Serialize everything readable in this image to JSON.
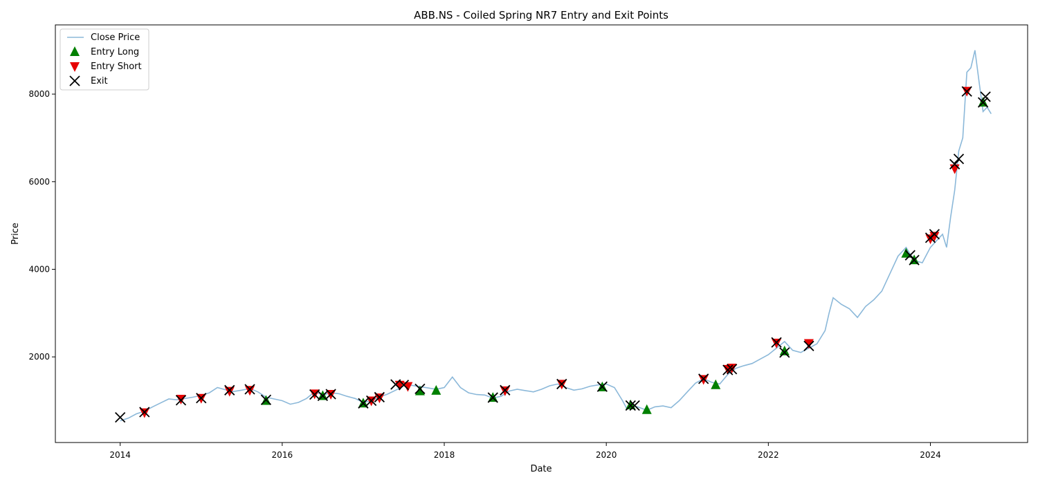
{
  "chart_data": {
    "type": "line",
    "title": "ABB.NS - Coiled Spring NR7 Entry and Exit Points",
    "xlabel": "Date",
    "ylabel": "Price",
    "xlim": [
      2013.2,
      2025.2
    ],
    "ylim": [
      45,
      9580
    ],
    "x_ticks": [
      2014,
      2016,
      2018,
      2020,
      2022,
      2024
    ],
    "x_tick_labels": [
      "2014",
      "2016",
      "2018",
      "2020",
      "2022",
      "2024"
    ],
    "y_ticks": [
      2000,
      4000,
      6000,
      8000
    ],
    "y_tick_labels": [
      "2000",
      "4000",
      "6000",
      "8000"
    ],
    "grid": false,
    "legend_position": "top-left",
    "series": [
      {
        "name": "Close Price",
        "kind": "line",
        "color": "#8bb8d9",
        "x": [
          2014.0,
          2014.1,
          2014.2,
          2014.3,
          2014.4,
          2014.5,
          2014.6,
          2014.7,
          2014.8,
          2014.9,
          2015.0,
          2015.1,
          2015.2,
          2015.3,
          2015.4,
          2015.5,
          2015.6,
          2015.7,
          2015.8,
          2015.9,
          2016.0,
          2016.1,
          2016.2,
          2016.3,
          2016.4,
          2016.5,
          2016.6,
          2016.7,
          2016.8,
          2016.9,
          2017.0,
          2017.1,
          2017.2,
          2017.3,
          2017.4,
          2017.5,
          2017.6,
          2017.7,
          2017.8,
          2017.9,
          2018.0,
          2018.1,
          2018.2,
          2018.3,
          2018.4,
          2018.5,
          2018.6,
          2018.7,
          2018.8,
          2018.9,
          2019.0,
          2019.1,
          2019.2,
          2019.3,
          2019.4,
          2019.5,
          2019.6,
          2019.7,
          2019.8,
          2019.9,
          2020.0,
          2020.1,
          2020.2,
          2020.25,
          2020.3,
          2020.4,
          2020.5,
          2020.6,
          2020.7,
          2020.8,
          2020.9,
          2021.0,
          2021.1,
          2021.2,
          2021.3,
          2021.4,
          2021.5,
          2021.6,
          2021.7,
          2021.8,
          2021.9,
          2022.0,
          2022.1,
          2022.2,
          2022.3,
          2022.4,
          2022.5,
          2022.6,
          2022.7,
          2022.75,
          2022.8,
          2022.9,
          2023.0,
          2023.1,
          2023.2,
          2023.3,
          2023.4,
          2023.5,
          2023.6,
          2023.7,
          2023.75,
          2023.8,
          2023.9,
          2024.0,
          2024.1,
          2024.15,
          2024.2,
          2024.25,
          2024.3,
          2024.35,
          2024.4,
          2024.45,
          2024.5,
          2024.55,
          2024.6,
          2024.65,
          2024.7,
          2024.75
        ],
        "y": [
          540,
          600,
          700,
          760,
          860,
          950,
          1040,
          1020,
          1050,
          1080,
          1120,
          1180,
          1300,
          1250,
          1210,
          1240,
          1280,
          1200,
          1080,
          1040,
          1000,
          920,
          960,
          1050,
          1200,
          1130,
          1180,
          1160,
          1100,
          1050,
          960,
          1000,
          1080,
          1150,
          1240,
          1340,
          1350,
          1320,
          1290,
          1260,
          1300,
          1540,
          1300,
          1180,
          1140,
          1130,
          1060,
          1100,
          1220,
          1260,
          1230,
          1200,
          1260,
          1340,
          1380,
          1300,
          1240,
          1270,
          1330,
          1360,
          1380,
          1300,
          1000,
          830,
          900,
          850,
          780,
          860,
          880,
          840,
          1000,
          1200,
          1400,
          1500,
          1420,
          1380,
          1600,
          1740,
          1800,
          1850,
          1950,
          2050,
          2200,
          2350,
          2150,
          2100,
          2200,
          2300,
          2600,
          3000,
          3350,
          3200,
          3100,
          2900,
          3150,
          3300,
          3500,
          3900,
          4300,
          4500,
          4350,
          4200,
          4150,
          4500,
          4700,
          4800,
          4500,
          5200,
          5800,
          6700,
          7000,
          8500,
          8600,
          9000,
          8300,
          7600,
          7700,
          7550
        ]
      },
      {
        "name": "Entry Long",
        "kind": "marker",
        "marker": "triangle-up",
        "color": "#008000",
        "x": [
          2015.8,
          2016.5,
          2017.0,
          2017.7,
          2017.9,
          2018.6,
          2019.95,
          2020.3,
          2020.5,
          2021.35,
          2022.2,
          2023.7,
          2023.8,
          2024.65
        ],
        "y": [
          1000,
          1110,
          940,
          1220,
          1230,
          1070,
          1310,
          900,
          790,
          1360,
          2130,
          4360,
          4210,
          7810
        ]
      },
      {
        "name": "Entry Short",
        "kind": "marker",
        "marker": "triangle-down",
        "color": "#e60000",
        "x": [
          2014.3,
          2014.75,
          2015.0,
          2015.35,
          2015.6,
          2016.4,
          2016.6,
          2017.1,
          2017.2,
          2017.45,
          2017.55,
          2018.75,
          2019.45,
          2021.2,
          2021.5,
          2021.55,
          2022.1,
          2022.5,
          2024.0,
          2024.05,
          2024.3,
          2024.45
        ],
        "y": [
          730,
          1040,
          1060,
          1220,
          1240,
          1160,
          1150,
          1000,
          1070,
          1360,
          1330,
          1230,
          1380,
          1490,
          1720,
          1750,
          2320,
          2310,
          4700,
          4760,
          6300,
          8070
        ]
      },
      {
        "name": "Exit",
        "kind": "marker",
        "marker": "x",
        "color": "#000000",
        "x": [
          2014.0,
          2014.3,
          2014.75,
          2015.0,
          2015.35,
          2015.6,
          2015.8,
          2016.4,
          2016.5,
          2016.6,
          2017.0,
          2017.1,
          2017.2,
          2017.4,
          2017.5,
          2017.7,
          2018.6,
          2018.75,
          2019.45,
          2019.95,
          2020.3,
          2020.35,
          2021.2,
          2021.5,
          2021.55,
          2022.1,
          2022.2,
          2022.5,
          2023.75,
          2023.8,
          2024.0,
          2024.05,
          2024.3,
          2024.35,
          2024.45,
          2024.65,
          2024.68
        ],
        "y": [
          620,
          740,
          1010,
          1060,
          1240,
          1260,
          1020,
          1140,
          1110,
          1150,
          940,
          1000,
          1080,
          1370,
          1360,
          1270,
          1070,
          1240,
          1380,
          1320,
          890,
          890,
          1500,
          1700,
          1720,
          2330,
          2100,
          2250,
          4320,
          4210,
          4720,
          4800,
          6400,
          6520,
          8060,
          7810,
          7940
        ]
      }
    ]
  }
}
